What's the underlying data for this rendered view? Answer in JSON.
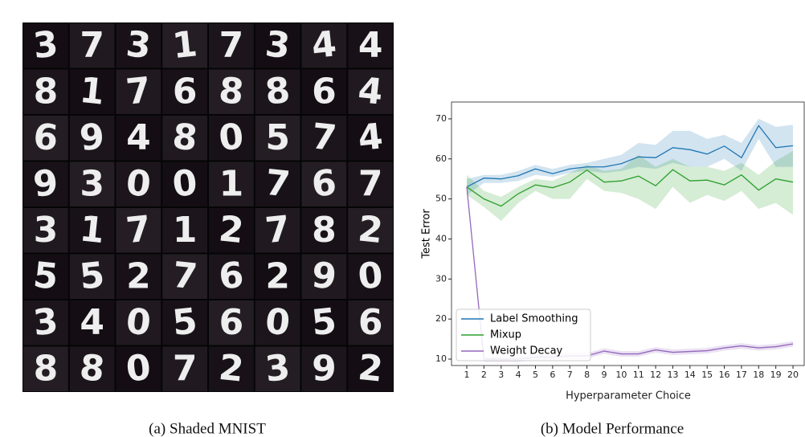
{
  "image": {
    "digits": [
      [
        "3",
        "7",
        "3",
        "1",
        "7",
        "3",
        "4",
        "4"
      ],
      [
        "8",
        "1",
        "7",
        "6",
        "8",
        "8",
        "6",
        "4"
      ],
      [
        "6",
        "9",
        "4",
        "8",
        "0",
        "5",
        "7",
        "4"
      ],
      [
        "9",
        "3",
        "0",
        "0",
        "1",
        "7",
        "6",
        "7"
      ],
      [
        "3",
        "1",
        "7",
        "1",
        "2",
        "7",
        "8",
        "2"
      ],
      [
        "5",
        "5",
        "2",
        "7",
        "6",
        "2",
        "9",
        "0"
      ],
      [
        "3",
        "4",
        "0",
        "5",
        "6",
        "0",
        "5",
        "6"
      ],
      [
        "8",
        "8",
        "0",
        "7",
        "2",
        "3",
        "9",
        "2"
      ]
    ]
  },
  "captions": [
    "(a) Shaded MNIST",
    "(b) Model Performance"
  ],
  "chart_data": {
    "type": "line",
    "xlabel": "Hyperparameter Choice",
    "ylabel": "Test Error",
    "x": [
      1,
      2,
      3,
      4,
      5,
      6,
      7,
      8,
      9,
      10,
      11,
      12,
      13,
      14,
      15,
      16,
      17,
      18,
      19,
      20
    ],
    "xlim": [
      0.11,
      20.7
    ],
    "xticks": [
      1,
      2,
      3,
      4,
      5,
      6,
      7,
      8,
      9,
      10,
      11,
      12,
      13,
      14,
      15,
      16,
      17,
      18,
      19,
      20
    ],
    "ylim": [
      8.4,
      74.2
    ],
    "yticks": [
      10,
      20,
      30,
      40,
      50,
      60,
      70
    ],
    "legend": "lower left",
    "series": [
      {
        "name": "Label Smoothing",
        "color": "#1f77b4",
        "values": [
          53,
          55.2,
          55,
          55.8,
          57.5,
          56.3,
          57.5,
          58,
          58,
          58.8,
          60.5,
          60.3,
          62.8,
          62.3,
          61.2,
          63.2,
          60.3,
          68.3,
          62.8,
          63.3
        ],
        "upper": [
          55,
          56,
          56,
          57,
          58.5,
          57.5,
          58.5,
          59,
          60,
          61,
          64,
          63.5,
          67,
          67,
          65,
          66,
          64,
          70,
          68,
          68.5
        ],
        "lower": [
          51,
          54,
          54,
          54.5,
          56,
          55.5,
          56.5,
          57,
          56.5,
          57,
          58,
          57.5,
          59,
          58,
          58,
          60,
          57,
          65,
          58,
          58
        ]
      },
      {
        "name": "Mixup",
        "color": "#2ca02c",
        "values": [
          53,
          50,
          48.2,
          51.3,
          53.5,
          52.8,
          54.2,
          57.2,
          54.2,
          54.5,
          55.7,
          53.3,
          57.3,
          54.5,
          54.7,
          53.5,
          56,
          52.2,
          55,
          54.2
        ],
        "upper": [
          56,
          52,
          50.5,
          53,
          55,
          54.5,
          56.5,
          58.5,
          57,
          57.5,
          61,
          58,
          60,
          58,
          58,
          57,
          59,
          56,
          59.5,
          62
        ],
        "lower": [
          51,
          48,
          44.5,
          49,
          52,
          50,
          50,
          55,
          52,
          51.5,
          50,
          47.5,
          53,
          49,
          51,
          49.5,
          52,
          47.5,
          49,
          46
        ]
      },
      {
        "name": "Weight Decay",
        "color": "#9467bd",
        "values": [
          53,
          10,
          10,
          10,
          10.5,
          10.5,
          10.8,
          10.8,
          12,
          11.3,
          11.3,
          12.3,
          11.7,
          11.9,
          12.1,
          12.8,
          13.3,
          12.8,
          13.1,
          13.8
        ],
        "upper": [
          54,
          10.7,
          10.7,
          10.7,
          11.2,
          11.2,
          11.5,
          11.5,
          12.7,
          12,
          12,
          13,
          12.4,
          12.6,
          12.8,
          13.5,
          14,
          13.5,
          13.8,
          14.5
        ],
        "lower": [
          52,
          9.3,
          9.3,
          9.3,
          9.8,
          9.8,
          10.1,
          10.1,
          11.3,
          10.6,
          10.6,
          11.6,
          11,
          11.2,
          11.4,
          12.1,
          12.6,
          12.1,
          12.4,
          13.1
        ]
      }
    ]
  }
}
